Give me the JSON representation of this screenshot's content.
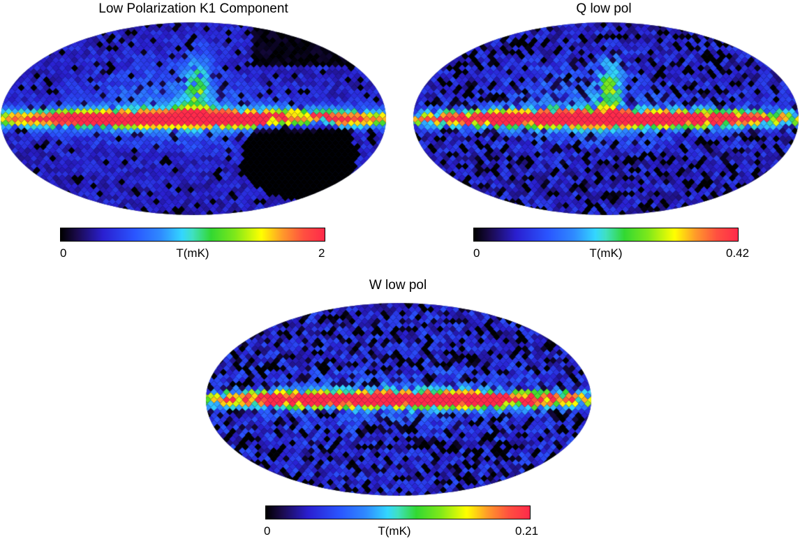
{
  "chart_data": [
    {
      "type": "heatmap",
      "projection": "mollweide",
      "title": "Low Polarization K1 Component",
      "colorbar": {
        "min": "0",
        "max": "2",
        "label": "T(mK)"
      },
      "colormap": [
        "#000000",
        "#1a0a4a",
        "#2a1fd0",
        "#2a55ff",
        "#2f8bff",
        "#33d6ff",
        "#32d832",
        "#ffff00",
        "#ff9a2a",
        "#ff2a4a"
      ],
      "features": {
        "galactic_plane": "saturated red band",
        "extra": "dark region lower right, bright spur above center"
      }
    },
    {
      "type": "heatmap",
      "projection": "mollweide",
      "title": "Q low pol",
      "colorbar": {
        "min": "0",
        "max": "0.42",
        "label": "T(mK)"
      },
      "colormap": [
        "#000000",
        "#1a0a4a",
        "#2a1fd0",
        "#2a55ff",
        "#2f8bff",
        "#33d6ff",
        "#32d832",
        "#ffff00",
        "#ff9a2a",
        "#ff2a4a"
      ],
      "features": {
        "galactic_plane": "saturated red band",
        "extra": "noisy pixelated background"
      }
    },
    {
      "type": "heatmap",
      "projection": "mollweide",
      "title": "W low pol",
      "colorbar": {
        "min": "0",
        "max": "0.21",
        "label": "T(mK)"
      },
      "colormap": [
        "#000000",
        "#1a0a4a",
        "#2a1fd0",
        "#2a55ff",
        "#2f8bff",
        "#33d6ff",
        "#32d832",
        "#ffff00",
        "#ff9a2a",
        "#ff2a4a"
      ],
      "features": {
        "galactic_plane": "saturated red band",
        "extra": "very noisy background"
      }
    }
  ]
}
